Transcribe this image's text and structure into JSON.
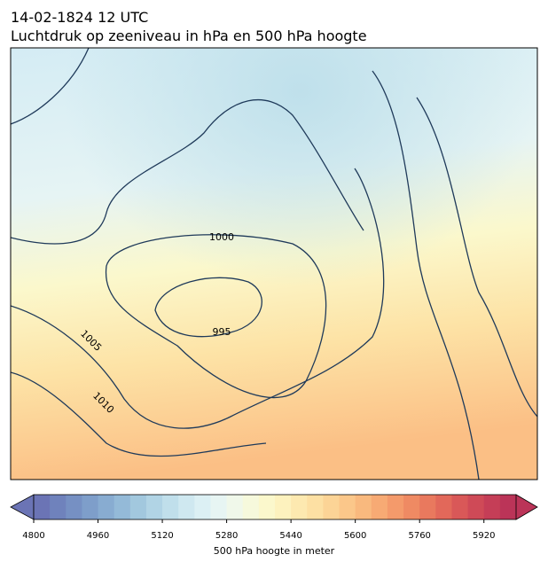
{
  "title": "14-02-1824 12 UTC",
  "subtitle": "Luchtdruk op zeeniveau in hPa en 500 hPa hoogte",
  "map": {
    "contour_labels": [
      "1000",
      "995",
      "1005",
      "1010"
    ],
    "contour_color": "#1f3a5a"
  },
  "colorbar": {
    "label": "500 hPa hoogte in meter",
    "lim": [
      4800,
      6000
    ],
    "ticks": [
      4800,
      4960,
      5120,
      5280,
      5440,
      5600,
      5760,
      5920
    ],
    "colors": [
      "#6b74b5",
      "#6f82bc",
      "#7690c3",
      "#7e9eca",
      "#88acd1",
      "#94bad8",
      "#a2c8de",
      "#b1d4e5",
      "#c0dfeb",
      "#cfe8f0",
      "#dcf0f4",
      "#e7f5f3",
      "#f0f8ea",
      "#f6f9dc",
      "#fbf8cc",
      "#fdf2be",
      "#fde9b0",
      "#fde0a3",
      "#fcd496",
      "#fbc78a",
      "#f9b97e",
      "#f7aa74",
      "#f49a6b",
      "#ef8a63",
      "#e9795e",
      "#e2685a",
      "#d95858",
      "#cf4a57",
      "#c53e57",
      "#bb3458"
    ]
  }
}
